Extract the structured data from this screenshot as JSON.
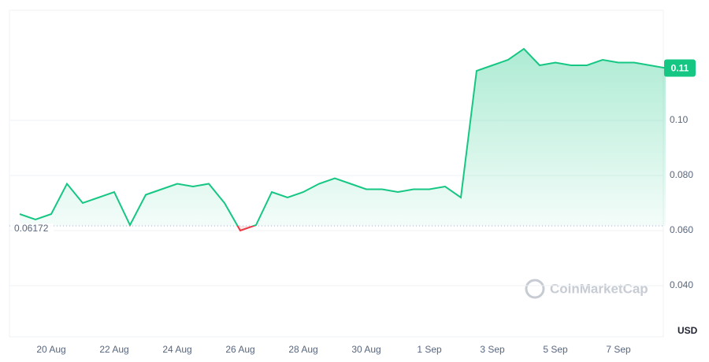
{
  "chart_data": {
    "type": "line",
    "categories": [
      null,
      null,
      "20 Aug",
      null,
      null,
      null,
      "22 Aug",
      null,
      null,
      null,
      "24 Aug",
      null,
      null,
      null,
      "26 Aug",
      null,
      null,
      null,
      "28 Aug",
      null,
      null,
      null,
      "30 Aug",
      null,
      null,
      null,
      "1 Sep",
      null,
      null,
      null,
      "3 Sep",
      null,
      null,
      null,
      "5 Sep",
      null,
      null,
      null,
      "7 Sep",
      null,
      null,
      null
    ],
    "values": [
      0.066,
      0.064,
      0.066,
      0.077,
      0.07,
      0.072,
      0.074,
      0.062,
      0.073,
      0.075,
      0.077,
      0.076,
      0.077,
      0.07,
      0.06,
      0.062,
      0.074,
      0.072,
      0.074,
      0.077,
      0.079,
      0.077,
      0.075,
      0.075,
      0.074,
      0.075,
      0.075,
      0.076,
      0.072,
      0.118,
      0.12,
      0.122,
      0.126,
      0.12,
      0.121,
      0.12,
      0.12,
      0.122,
      0.121,
      0.121,
      0.12,
      0.119
    ],
    "color": "#16c784",
    "down_color": "#ea3943",
    "reference": 0.06172,
    "price_label": "0.11",
    "currency": "USD",
    "watermark": "CoinMarketCap",
    "ylim": [
      0.02,
      0.14
    ],
    "yticks": [
      {
        "value": 0.04,
        "label": "0.040"
      },
      {
        "value": 0.06,
        "label": "0.060"
      },
      {
        "value": 0.08,
        "label": "0.080"
      },
      {
        "value": 0.1,
        "label": "0.10"
      }
    ],
    "grid": true
  }
}
